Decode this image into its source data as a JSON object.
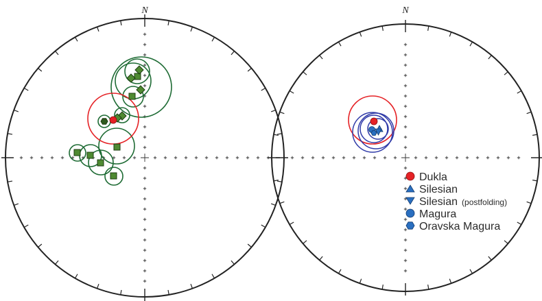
{
  "colors": {
    "outline": "#222222",
    "green_circle": "#1e6b34",
    "green_fill": "#4f8a32",
    "red": "#e52226",
    "blue_circle": "#2f3aa8",
    "blue_fill": "#2a6fc0"
  },
  "left_net": {
    "north_label": "N"
  },
  "right_net": {
    "north_label": "N"
  },
  "legend": {
    "items": [
      {
        "marker": "circle",
        "color": "#e52226",
        "label": "Dukla",
        "suffix": ""
      },
      {
        "marker": "triangle-up",
        "color": "#2a6fc0",
        "label": "Silesian",
        "suffix": ""
      },
      {
        "marker": "triangle-down",
        "color": "#2a6fc0",
        "label": "Silesian",
        "suffix": "(postfolding)"
      },
      {
        "marker": "circle",
        "color": "#2a6fc0",
        "label": "Magura",
        "suffix": ""
      },
      {
        "marker": "hexagon",
        "color": "#2a6fc0",
        "label": "Oravska Magura",
        "suffix": ""
      }
    ]
  }
}
